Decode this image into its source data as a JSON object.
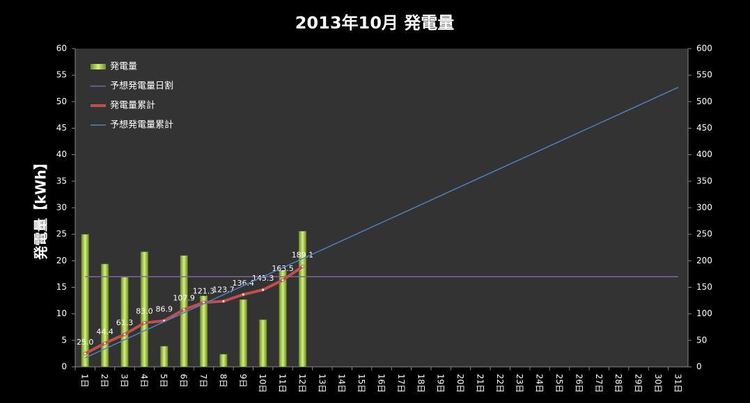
{
  "chart_data": {
    "type": "bar-line",
    "title": "2013年10月 発電量",
    "ylabel": "発電量【kWh】",
    "categories": [
      "1日",
      "2日",
      "3日",
      "4日",
      "5日",
      "6日",
      "7日",
      "8日",
      "9日",
      "10日",
      "11日",
      "12日",
      "13日",
      "14日",
      "15日",
      "16日",
      "17日",
      "18日",
      "19日",
      "20日",
      "21日",
      "22日",
      "23日",
      "24日",
      "25日",
      "26日",
      "27日",
      "28日",
      "29日",
      "30日",
      "31日"
    ],
    "series": [
      {
        "name": "発電量",
        "kind": "bar",
        "color": "#9acd32",
        "axis": "y",
        "values": [
          25.0,
          19.4,
          16.9,
          21.7,
          3.9,
          21.0,
          13.4,
          2.4,
          12.7,
          8.9,
          18.2,
          25.6,
          null,
          null,
          null,
          null,
          null,
          null,
          null,
          null,
          null,
          null,
          null,
          null,
          null,
          null,
          null,
          null,
          null,
          null,
          null
        ]
      },
      {
        "name": "予想発電量日割",
        "kind": "line",
        "color": "#8064a2",
        "axis": "y",
        "values": [
          17,
          17,
          17,
          17,
          17,
          17,
          17,
          17,
          17,
          17,
          17,
          17,
          17,
          17,
          17,
          17,
          17,
          17,
          17,
          17,
          17,
          17,
          17,
          17,
          17,
          17,
          17,
          17,
          17,
          17,
          17
        ]
      },
      {
        "name": "発電量累計",
        "kind": "line-marker",
        "color": "#c0504d",
        "axis": "y2",
        "values": [
          25.0,
          44.4,
          61.3,
          83.0,
          86.9,
          107.9,
          121.3,
          123.7,
          136.4,
          145.3,
          163.5,
          189.1,
          null,
          null,
          null,
          null,
          null,
          null,
          null,
          null,
          null,
          null,
          null,
          null,
          null,
          null,
          null,
          null,
          null,
          null,
          null
        ],
        "value_labels": [
          "25.0",
          "44.4",
          "61.3",
          "83.0",
          "86.9",
          "107.9",
          "121.3",
          "123.7",
          "136.4",
          "145.3",
          "163.5",
          "189.1",
          null,
          null,
          null,
          null,
          null,
          null,
          null,
          null,
          null,
          null,
          null,
          null,
          null,
          null,
          null,
          null,
          null,
          null,
          null
        ]
      },
      {
        "name": "予想発電量累計",
        "kind": "line",
        "color": "#4f81bd",
        "axis": "y2",
        "values": [
          17,
          34,
          51,
          68,
          85,
          102,
          119,
          136,
          153,
          170,
          187,
          204,
          221,
          238,
          255,
          272,
          289,
          306,
          323,
          340,
          357,
          374,
          391,
          408,
          425,
          442,
          459,
          476,
          493,
          510,
          527
        ]
      }
    ],
    "ylim": [
      0,
      60
    ],
    "yticks": [
      0,
      5,
      10,
      15,
      20,
      25,
      30,
      35,
      40,
      45,
      50,
      55,
      60
    ],
    "y2lim": [
      0,
      600
    ],
    "y2ticks": [
      0,
      50,
      100,
      150,
      200,
      250,
      300,
      350,
      400,
      450,
      500,
      550,
      600
    ],
    "grid": false,
    "legend": "upper-left"
  }
}
